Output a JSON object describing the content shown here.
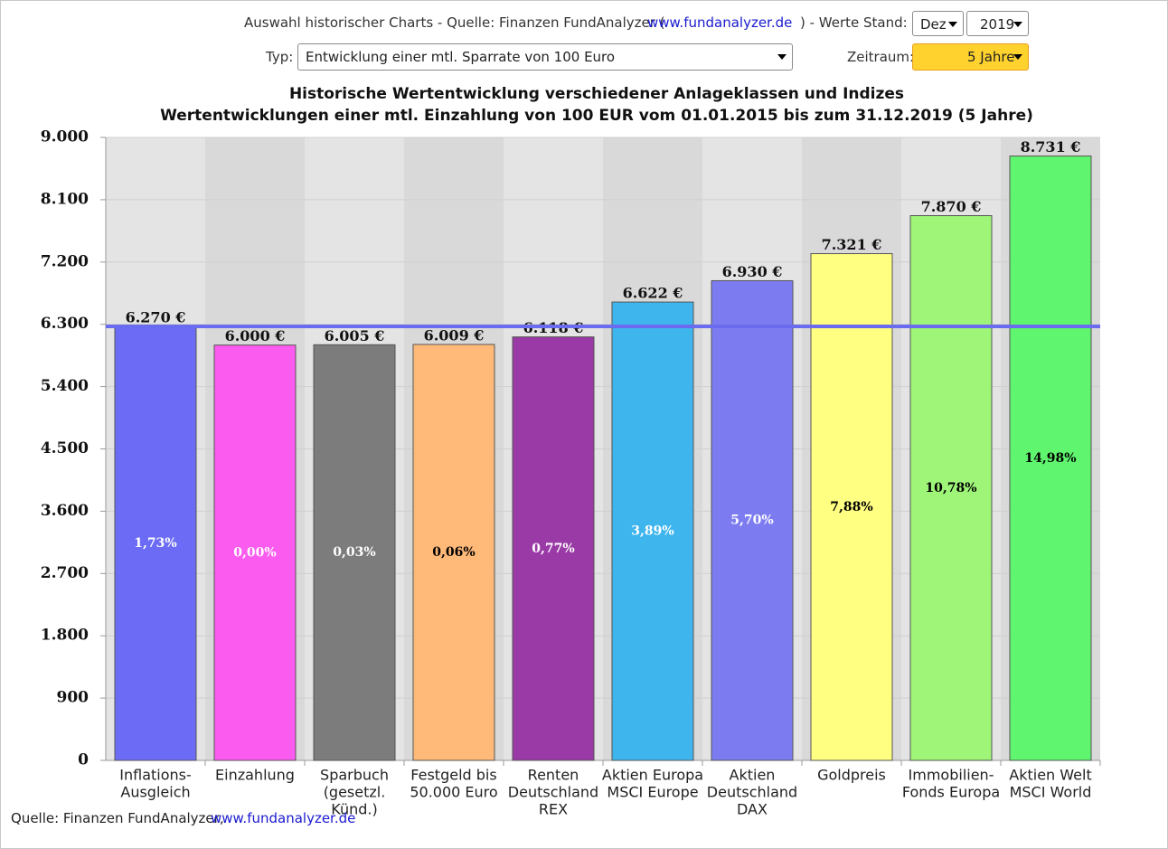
{
  "header": {
    "intro": "Auswahl historischer Charts - Quelle: Finanzen FundAnalyzer (",
    "link": "www.fundanalyzer.de",
    "stand_label": ") - Werte Stand:",
    "month": "Dez",
    "year": "2019",
    "type_label": "Typ:",
    "type_value": "Entwicklung einer mtl. Sparrate von 100 Euro",
    "period_label": "Zeitraum:",
    "period_value": "5 Jahre"
  },
  "footer": {
    "source": "Quelle: Finanzen FundAnalyzer,",
    "link": "www.fundanalyzer.de"
  },
  "chart_data": {
    "type": "bar",
    "title": "Historische Wertentwicklung verschiedener Anlageklassen und Indizes",
    "subtitle": "Wertentwicklungen einer mtl. Einzahlung von 100 EUR vom 01.01.2015 bis zum 31.12.2019 (5 Jahre)",
    "categories": [
      [
        "Inflations-",
        "Ausgleich"
      ],
      [
        "Einzahlung"
      ],
      [
        "Sparbuch",
        "(gesetzl.",
        "Künd.)"
      ],
      [
        "Festgeld bis",
        "50.000 Euro"
      ],
      [
        "Renten",
        "Deutschland",
        "REX"
      ],
      [
        "Aktien Europa",
        "MSCI Europe"
      ],
      [
        "Aktien",
        "Deutschland",
        "DAX"
      ],
      [
        "Goldpreis"
      ],
      [
        "Immobilien-",
        "Fonds Europa"
      ],
      [
        "Aktien Welt",
        "MSCI World"
      ]
    ],
    "values": [
      6270,
      6000,
      6005,
      6009,
      6118,
      6622,
      6930,
      7321,
      7870,
      8731
    ],
    "value_labels": [
      "6.270 €",
      "6.000 €",
      "6.005 €",
      "6.009 €",
      "6.118 €",
      "6.622 €",
      "6.930 €",
      "7.321 €",
      "7.870 €",
      "8.731 €"
    ],
    "colors": [
      "#6b6bf5",
      "#fb5cef",
      "#7c7c7c",
      "#ffb978",
      "#9a3aa6",
      "#3fb5ee",
      "#7c7cf0",
      "#ffff82",
      "#9ef578",
      "#5ff56e"
    ],
    "returns": {
      "values": [
        1.73,
        0.0,
        0.03,
        0.06,
        0.77,
        3.89,
        5.7,
        7.88,
        10.78,
        14.98
      ],
      "value_labels": [
        "1,73%",
        "0,00%",
        "0,03%",
        "0,06%",
        "0,77%",
        "3,89%",
        "5,70%",
        "7,88%",
        "10,78%",
        "14,98%"
      ],
      "colors": [
        "#ffffff",
        "#ffffff",
        "#ffffff",
        "#000000",
        "#ffffff",
        "#ffffff",
        "#ffffff",
        "#000000",
        "#000000",
        "#000000"
      ]
    },
    "reference_line": {
      "value": 6270,
      "color": "#6b6bf0"
    },
    "ylim": [
      0,
      9000
    ],
    "yticks": [
      {
        "value": 0,
        "label": "0"
      },
      {
        "value": 900,
        "label": "900"
      },
      {
        "value": 1800,
        "label": "1.800"
      },
      {
        "value": 2700,
        "label": "2.700"
      },
      {
        "value": 3600,
        "label": "3.600"
      },
      {
        "value": 4500,
        "label": "4.500"
      },
      {
        "value": 5400,
        "label": "5.400"
      },
      {
        "value": 6300,
        "label": "6.300"
      },
      {
        "value": 7200,
        "label": "7.200"
      },
      {
        "value": 8100,
        "label": "8.100"
      },
      {
        "value": 9000,
        "label": "9.000"
      }
    ],
    "grid": true
  }
}
